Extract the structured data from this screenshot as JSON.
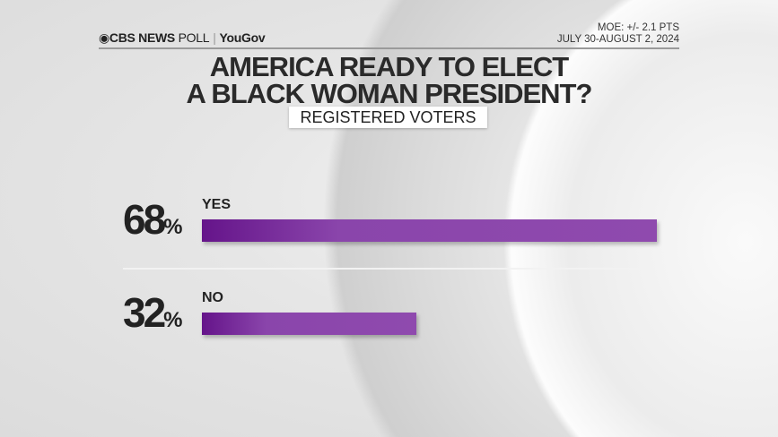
{
  "header": {
    "brand": "CBS NEWS",
    "brand_suffix": "POLL",
    "partner": "YouGov",
    "moe": "MOE: +/- 2.1 PTS",
    "dates": "JULY 30-AUGUST 2, 2024"
  },
  "chart_data": {
    "type": "bar",
    "orientation": "horizontal",
    "title": "AMERICA READY TO ELECT A BLACK WOMAN PRESIDENT?",
    "title_lines": [
      "AMERICA READY TO ELECT",
      "A BLACK WOMAN PRESIDENT?"
    ],
    "subtitle": "REGISTERED VOTERS",
    "categories": [
      "YES",
      "NO"
    ],
    "values": [
      68,
      32
    ],
    "unit": "%",
    "color": "#8f4aae",
    "grid": false,
    "legend": "none"
  }
}
